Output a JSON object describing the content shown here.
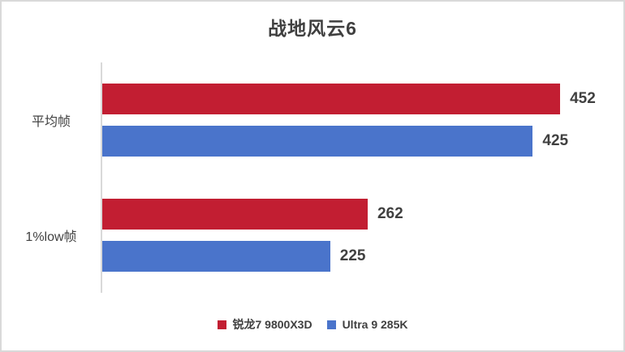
{
  "window": {
    "background": "#FFFFFF",
    "border_color": "#D9D9D9"
  },
  "chart_data": {
    "type": "bar",
    "orientation": "horizontal",
    "title": "战地风云6",
    "categories": [
      "平均帧",
      "1%low帧"
    ],
    "series": [
      {
        "name": "锐龙7 9800X3D",
        "color": "#C21E32",
        "values": [
          452,
          262
        ]
      },
      {
        "name": "Ultra 9 285K",
        "color": "#4A74CB",
        "values": [
          425,
          225
        ]
      }
    ],
    "xlim": [
      0,
      500
    ],
    "xlabel": "",
    "ylabel": "",
    "grid": false,
    "data_labels": true,
    "legend_position": "bottom",
    "axis_line_color": "#D9D9D9",
    "text_color": "#404040"
  }
}
